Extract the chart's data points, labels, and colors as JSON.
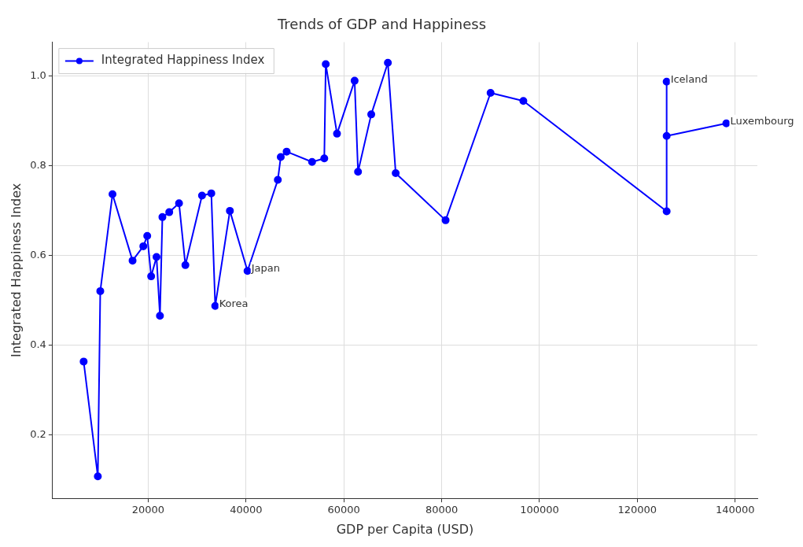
{
  "chart_data": {
    "type": "line",
    "title": "Trends of GDP and Happiness",
    "xlabel": "GDP per Capita (USD)",
    "ylabel": "Integrated Happiness Index",
    "x": [
      6800,
      9700,
      10200,
      12700,
      16800,
      19000,
      19800,
      20600,
      21700,
      22400,
      22900,
      24300,
      26300,
      27600,
      31000,
      32900,
      33700,
      36700,
      40300,
      46500,
      47100,
      48300,
      53500,
      56000,
      56300,
      58600,
      62200,
      62900,
      65600,
      69000,
      70600,
      80800,
      90000,
      96700,
      126000,
      126000,
      126000,
      138200
    ],
    "series": [
      {
        "name": "Integrated Happiness Index",
        "color": "#0000ff",
        "values": [
          0.364,
          0.108,
          0.521,
          0.737,
          0.589,
          0.621,
          0.644,
          0.554,
          0.597,
          0.466,
          0.686,
          0.697,
          0.717,
          0.579,
          0.734,
          0.739,
          0.488,
          0.7,
          0.566,
          0.769,
          0.82,
          0.832,
          0.809,
          0.817,
          1.027,
          0.872,
          0.99,
          0.787,
          0.915,
          1.03,
          0.784,
          0.679,
          0.963,
          0.945,
          0.699,
          0.988,
          0.867,
          0.895
        ]
      }
    ],
    "annotations": [
      {
        "text": "Korea",
        "x": 33700,
        "y": 0.488
      },
      {
        "text": "Japan",
        "x": 40300,
        "y": 0.566
      },
      {
        "text": "Iceland",
        "x": 126000,
        "y": 0.988
      },
      {
        "text": "Luxembourg",
        "x": 138200,
        "y": 0.895
      }
    ],
    "xlim": [
      450,
      144550
    ],
    "ylim": [
      0.059,
      1.076
    ],
    "xticks": [
      20000,
      40000,
      60000,
      80000,
      100000,
      120000,
      140000
    ],
    "yticks": [
      0.2,
      0.4,
      0.6,
      0.8,
      {
        "value": 1.0,
        "label": "1.0"
      }
    ],
    "grid": true,
    "legend": "top left",
    "marker": "circle",
    "line_style": "solid"
  }
}
